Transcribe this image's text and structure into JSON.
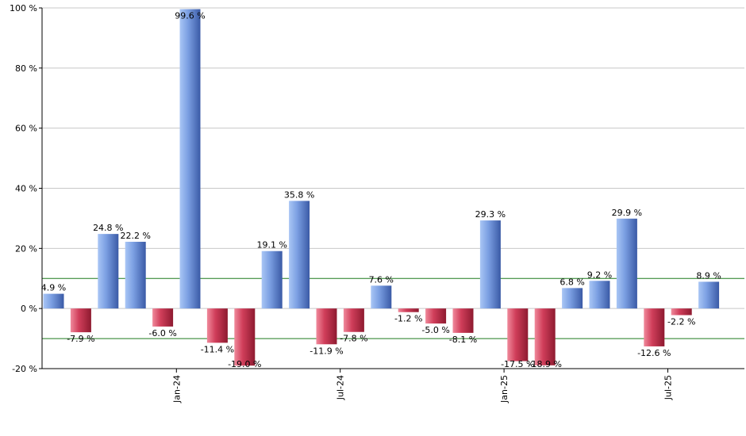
{
  "chart_data": {
    "type": "bar",
    "title": "",
    "xlabel": "",
    "ylabel": "",
    "ylim": [
      -20,
      100
    ],
    "yticks": [
      -20,
      0,
      20,
      40,
      60,
      80,
      100
    ],
    "ytick_suffix": " %",
    "grid": true,
    "reference_lines": [
      10,
      -10
    ],
    "x_tick_labels": [
      {
        "label": "Jan-24",
        "after_bar": 5
      },
      {
        "label": "Jul-24",
        "after_bar": 11
      },
      {
        "label": "Jan-25",
        "after_bar": 17
      },
      {
        "label": "Jul-25",
        "after_bar": 23
      }
    ],
    "values": [
      4.9,
      -7.9,
      24.8,
      22.2,
      -6.0,
      99.6,
      -11.4,
      -19.0,
      19.1,
      35.8,
      -11.9,
      -7.8,
      7.6,
      -1.2,
      -5.0,
      -8.1,
      29.3,
      -17.5,
      -18.9,
      6.8,
      9.2,
      29.9,
      -12.6,
      -2.2,
      8.9
    ],
    "value_labels": [
      "4.9 %",
      "-7.9 %",
      "24.8 %",
      "22.2 %",
      "-6.0 %",
      "99.6 %",
      "-11.4 %",
      "-19.0 %",
      "19.1 %",
      "35.8 %",
      "-11.9 %",
      "-7.8 %",
      "7.6 %",
      "-1.2 %",
      "-5.0 %",
      "-8.1 %",
      "29.3 %",
      "-17.5 %",
      "-18.9 %",
      "6.8 %",
      "9.2 %",
      "29.9 %",
      "-12.6 %",
      "-2.2 %",
      "8.9 %"
    ],
    "colors": {
      "positive_light": "#a9c6f5",
      "positive_mid": "#6f93dc",
      "positive_dark": "#3a5aa6",
      "negative_light": "#f08a9c",
      "negative_mid": "#c8334f",
      "negative_dark": "#8e1a30",
      "grid": "#c8c8c8",
      "reference_line": "#1f7a1f",
      "axis": "#000000"
    }
  }
}
